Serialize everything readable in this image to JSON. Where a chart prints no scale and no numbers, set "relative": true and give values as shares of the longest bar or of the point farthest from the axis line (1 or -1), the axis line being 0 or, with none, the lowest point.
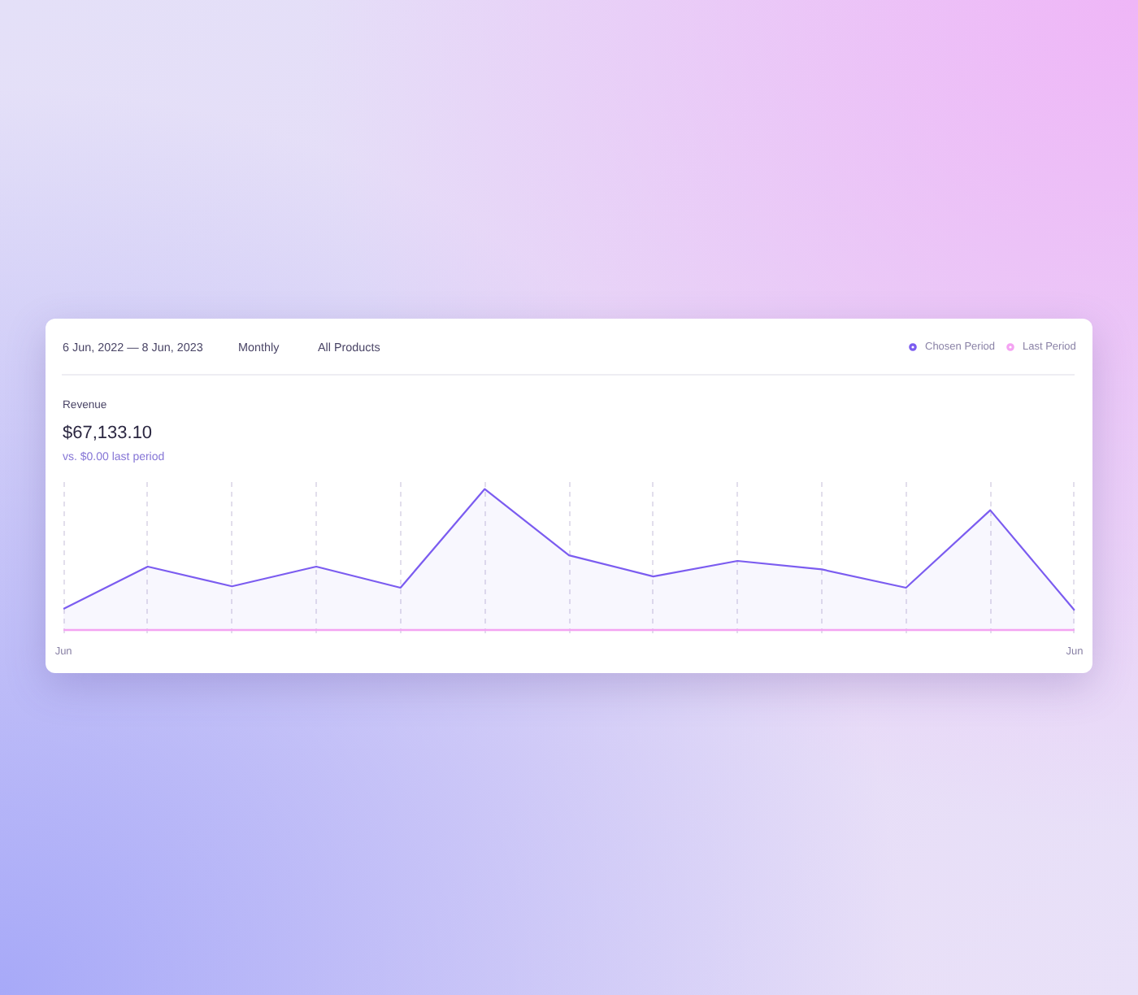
{
  "chart_data": {
    "type": "line",
    "title": "Revenue",
    "subtitle": "$67,133.10",
    "annotations": [
      "6 Jun, 2022 — 8 Jun, 2023",
      "Monthly",
      "All Products",
      "vs. $0.00 last period"
    ],
    "categories": [
      "Jun",
      null,
      null,
      null,
      null,
      null,
      null,
      null,
      null,
      null,
      null,
      null,
      "Jun"
    ],
    "relative": true,
    "series": [
      {
        "name": "Chosen Period",
        "type": "area",
        "color": "#7b5cf0",
        "values": [
          0.15,
          0.45,
          0.31,
          0.45,
          0.3,
          1,
          0.53,
          0.38,
          0.49,
          0.43,
          0.3,
          0.85,
          0.14
        ]
      },
      {
        "name": "Last Period",
        "color": "#f4a3f2",
        "values": [
          0,
          0,
          0,
          0,
          0,
          0,
          0,
          0,
          0,
          0,
          0,
          0,
          0
        ]
      }
    ],
    "grid": "x",
    "legend": "top right"
  }
}
